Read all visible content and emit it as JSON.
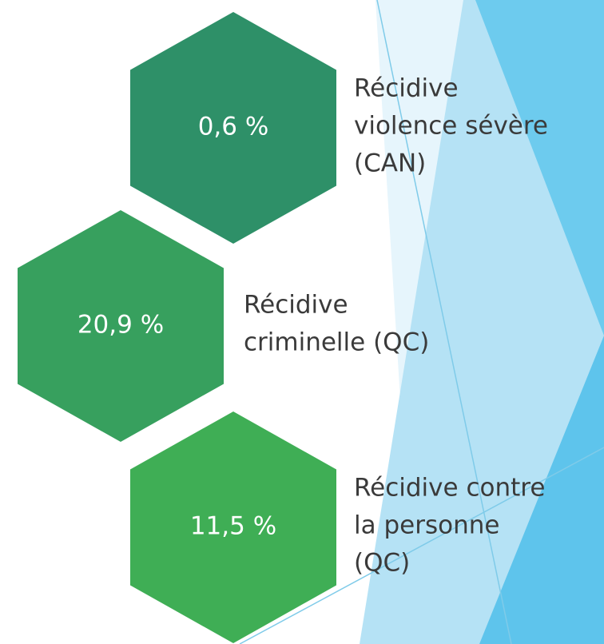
{
  "items": [
    {
      "value": "0,6 %",
      "lines": [
        "Récidive",
        "violence sévère",
        "(CAN)"
      ],
      "color": "#2e9068"
    },
    {
      "value": "20,9 %",
      "lines": [
        "Récidive",
        "criminelle (QC)"
      ],
      "color": "#37a05e"
    },
    {
      "value": "11,5 %",
      "lines": [
        "Récidive contre",
        "la personne",
        "(QC)"
      ],
      "color": "#3fae55"
    }
  ]
}
